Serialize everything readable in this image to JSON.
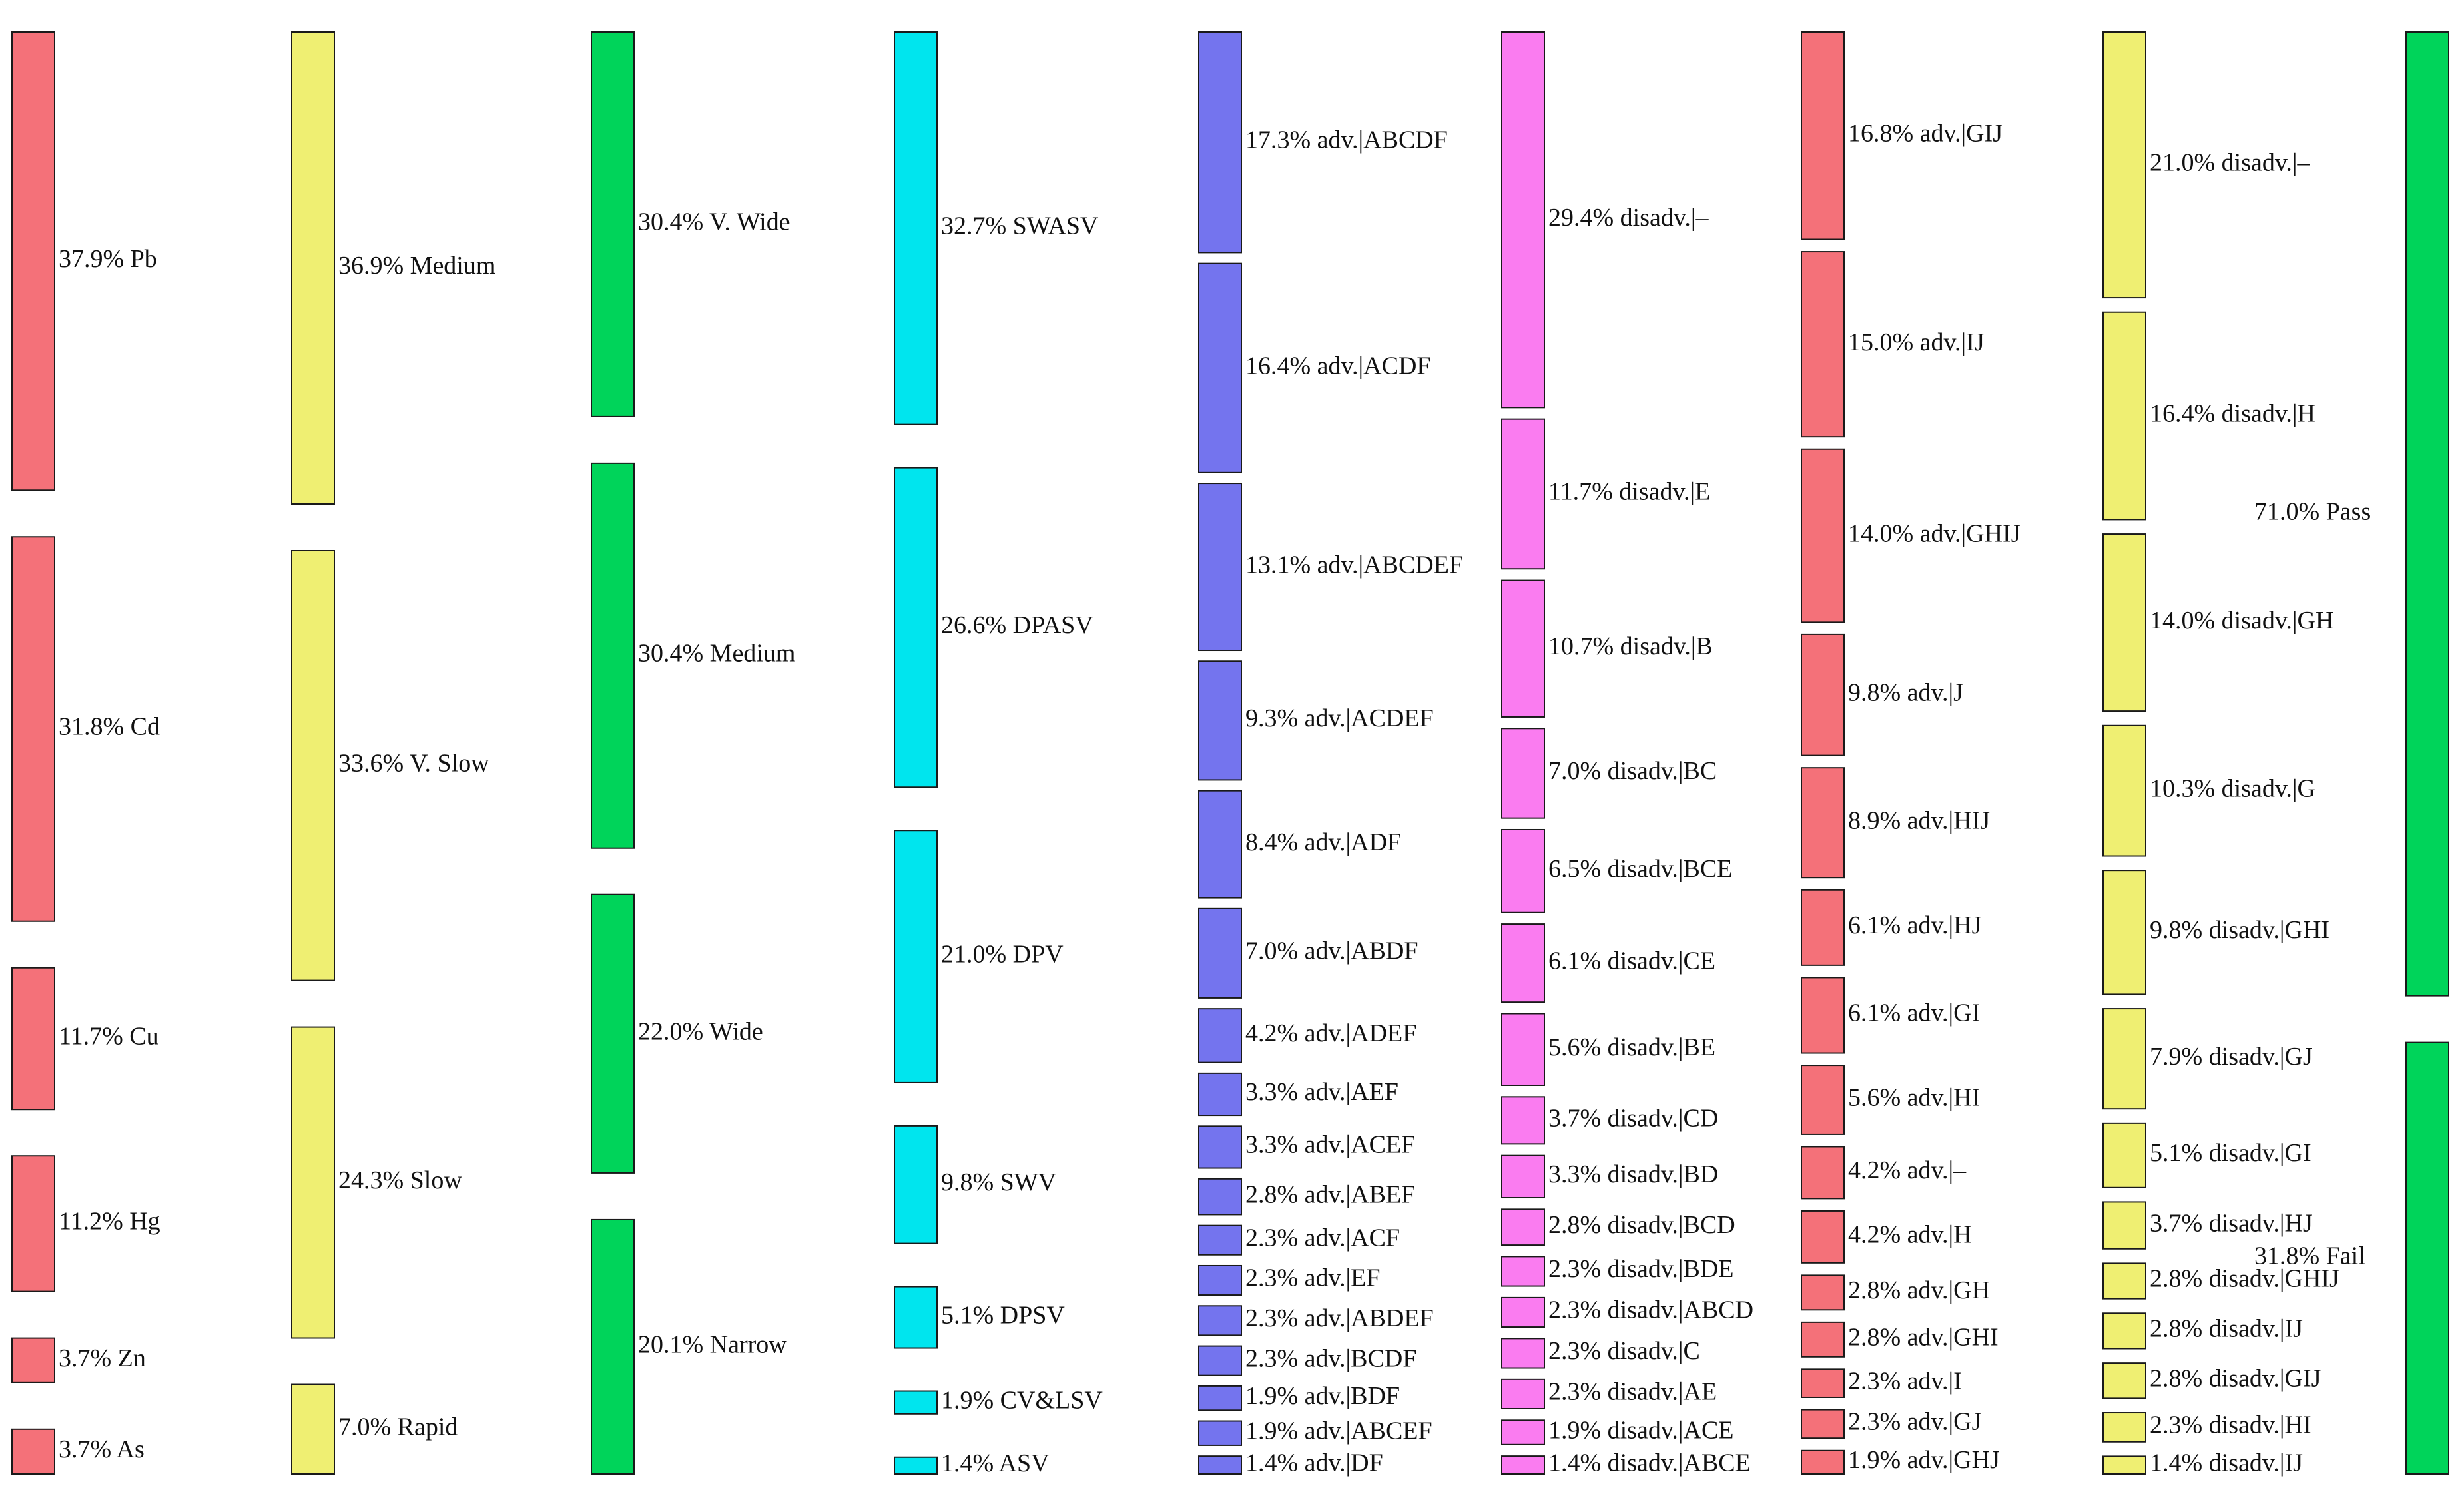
{
  "chart_data": {
    "type": "sankey",
    "columns": [
      {
        "color": "#F47179",
        "nodes": [
          {
            "label": "37.9% Pb",
            "value": 37.9
          },
          {
            "label": "31.8% Cd",
            "value": 31.8
          },
          {
            "label": "11.7% Cu",
            "value": 11.7
          },
          {
            "label": "11.2% Hg",
            "value": 11.2
          },
          {
            "label": "3.7% Zn",
            "value": 3.7
          },
          {
            "label": "3.7% As",
            "value": 3.7
          }
        ]
      },
      {
        "color": "#EFEF72",
        "nodes": [
          {
            "label": "36.9% Medium",
            "value": 36.9
          },
          {
            "label": "33.6% V. Slow",
            "value": 33.6
          },
          {
            "label": "24.3% Slow",
            "value": 24.3
          },
          {
            "label": "7.0% Rapid",
            "value": 7.0
          }
        ]
      },
      {
        "color": "#00D45A",
        "nodes": [
          {
            "label": "30.4% V. Wide",
            "value": 30.4
          },
          {
            "label": "30.4% Medium",
            "value": 30.4
          },
          {
            "label": "22.0% Wide",
            "value": 22.0
          },
          {
            "label": "20.1% Narrow",
            "value": 20.1
          }
        ]
      },
      {
        "color": "#00E5EE",
        "nodes": [
          {
            "label": "32.7% SWASV",
            "value": 32.7
          },
          {
            "label": "26.6% DPASV",
            "value": 26.6
          },
          {
            "label": "21.0% DPV",
            "value": 21.0
          },
          {
            "label": "9.8% SWV",
            "value": 9.8
          },
          {
            "label": "5.1% DPSV",
            "value": 5.1
          },
          {
            "label": "1.9% CV&LSV",
            "value": 1.9
          },
          {
            "label": "1.4% ASV",
            "value": 1.4
          }
        ]
      },
      {
        "color": "#7474EE",
        "nodes": [
          {
            "label": "17.3% adv.|ABCDF",
            "value": 17.3
          },
          {
            "label": "16.4% adv.|ACDF",
            "value": 16.4
          },
          {
            "label": "13.1% adv.|ABCDEF",
            "value": 13.1
          },
          {
            "label": "9.3% adv.|ACDEF",
            "value": 9.3
          },
          {
            "label": "8.4% adv.|ADF",
            "value": 8.4
          },
          {
            "label": "7.0% adv.|ABDF",
            "value": 7.0
          },
          {
            "label": "4.2% adv.|ADEF",
            "value": 4.2
          },
          {
            "label": "3.3% adv.|AEF",
            "value": 3.3
          },
          {
            "label": "3.3% adv.|ACEF",
            "value": 3.3
          },
          {
            "label": "2.8% adv.|ABEF",
            "value": 2.8
          },
          {
            "label": "2.3% adv.|ACF",
            "value": 2.3
          },
          {
            "label": "2.3% adv.|EF",
            "value": 2.3
          },
          {
            "label": "2.3% adv.|ABDEF",
            "value": 2.3
          },
          {
            "label": "2.3% adv.|BCDF",
            "value": 2.3
          },
          {
            "label": "1.9% adv.|BDF",
            "value": 1.9
          },
          {
            "label": "1.9% adv.|ABCEF",
            "value": 1.9
          },
          {
            "label": "1.4% adv.|DF",
            "value": 1.4
          }
        ]
      },
      {
        "color": "#FA7CF0",
        "nodes": [
          {
            "label": "29.4% disadv.|–",
            "value": 29.4
          },
          {
            "label": "11.7% disadv.|E",
            "value": 11.7
          },
          {
            "label": "10.7% disadv.|B",
            "value": 10.7
          },
          {
            "label": "7.0% disadv.|BC",
            "value": 7.0
          },
          {
            "label": "6.5% disadv.|BCE",
            "value": 6.5
          },
          {
            "label": "6.1% disadv.|CE",
            "value": 6.1
          },
          {
            "label": "5.6% disadv.|BE",
            "value": 5.6
          },
          {
            "label": "3.7% disadv.|CD",
            "value": 3.7
          },
          {
            "label": "3.3% disadv.|BD",
            "value": 3.3
          },
          {
            "label": "2.8% disadv.|BCD",
            "value": 2.8
          },
          {
            "label": "2.3% disadv.|BDE",
            "value": 2.3
          },
          {
            "label": "2.3% disadv.|ABCD",
            "value": 2.3
          },
          {
            "label": "2.3% disadv.|C",
            "value": 2.3
          },
          {
            "label": "2.3% disadv.|AE",
            "value": 2.3
          },
          {
            "label": "1.9% disadv.|ACE",
            "value": 1.9
          },
          {
            "label": "1.4% disadv.|ABCE",
            "value": 1.4
          }
        ]
      },
      {
        "color": "#F47179",
        "nodes": [
          {
            "label": "16.8% adv.|GIJ",
            "value": 16.8
          },
          {
            "label": "15.0% adv.|IJ",
            "value": 15.0
          },
          {
            "label": "14.0% adv.|GHIJ",
            "value": 14.0
          },
          {
            "label": "9.8% adv.|J",
            "value": 9.8
          },
          {
            "label": "8.9% adv.|HIJ",
            "value": 8.9
          },
          {
            "label": "6.1% adv.|HJ",
            "value": 6.1
          },
          {
            "label": "6.1% adv.|GI",
            "value": 6.1
          },
          {
            "label": "5.6% adv.|HI",
            "value": 5.6
          },
          {
            "label": "4.2% adv.|–",
            "value": 4.2
          },
          {
            "label": "4.2% adv.|H",
            "value": 4.2
          },
          {
            "label": "2.8% adv.|GH",
            "value": 2.8
          },
          {
            "label": "2.8% adv.|GHI",
            "value": 2.8
          },
          {
            "label": "2.3% adv.|I",
            "value": 2.3
          },
          {
            "label": "2.3% adv.|GJ",
            "value": 2.3
          },
          {
            "label": "1.9% adv.|GHJ",
            "value": 1.9
          }
        ]
      },
      {
        "color": "#EFEF72",
        "nodes": [
          {
            "label": "21.0% disadv.|–",
            "value": 21.0
          },
          {
            "label": "16.4% disadv.|H",
            "value": 16.4
          },
          {
            "label": "14.0% disadv.|GH",
            "value": 14.0
          },
          {
            "label": "10.3% disadv.|G",
            "value": 10.3
          },
          {
            "label": "9.8% disadv.|GHI",
            "value": 9.8
          },
          {
            "label": "7.9% disadv.|GJ",
            "value": 7.9
          },
          {
            "label": "5.1% disadv.|GI",
            "value": 5.1
          },
          {
            "label": "3.7% disadv.|HJ",
            "value": 3.7
          },
          {
            "label": "2.8% disadv.|GHIJ",
            "value": 2.8
          },
          {
            "label": "2.8% disadv.|IJ",
            "value": 2.8
          },
          {
            "label": "2.8% disadv.|GIJ",
            "value": 2.8
          },
          {
            "label": "2.3% disadv.|HI",
            "value": 2.3
          },
          {
            "label": "1.4% disadv.|IJ",
            "value": 1.4
          }
        ]
      },
      {
        "color": "#00D45A",
        "nodes": [
          {
            "label": "71.0% Pass",
            "value": 71.0
          },
          {
            "label": "31.8% Fail",
            "value": 31.8
          }
        ]
      }
    ],
    "link_colors": [
      "#FF1A1A",
      "#FF8C1A",
      "#E6E61A",
      "#8CE65A",
      "#00E05A",
      "#00E8B0",
      "#00E0E8",
      "#1E8CE8"
    ]
  }
}
